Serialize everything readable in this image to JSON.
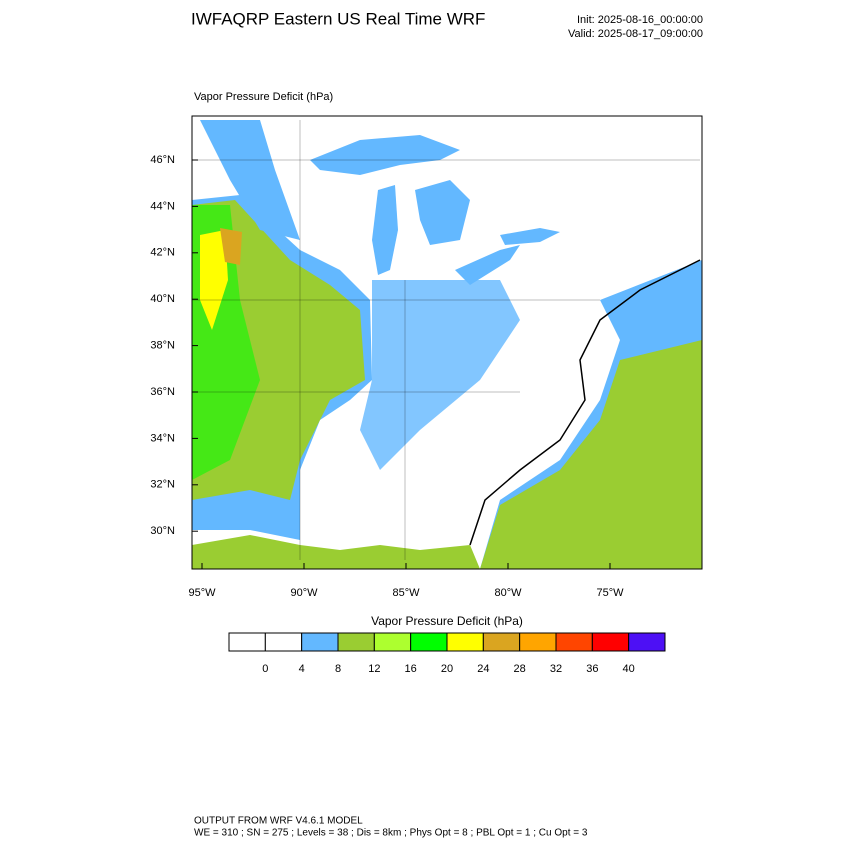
{
  "header": {
    "title": "IWFAQRP Eastern US Real Time WRF",
    "init": "Init: 2025-08-16_00:00:00",
    "valid": "Valid: 2025-08-17_09:00:00"
  },
  "plot": {
    "label": "Vapor Pressure Deficit   (hPa)",
    "lat_labels": [
      "46°N",
      "44°N",
      "42°N",
      "40°N",
      "38°N",
      "36°N",
      "34°N",
      "32°N",
      "30°N"
    ],
    "lon_labels": [
      "95°W",
      "90°W",
      "85°W",
      "80°W",
      "75°W"
    ]
  },
  "colorbar": {
    "title": "Vapor Pressure Deficit  (hPa)",
    "colors": [
      "#ffffff",
      "#ffffff",
      "#63b8ff",
      "#9acd32",
      "#adff2f",
      "#00ff00",
      "#ffff00",
      "#daa520",
      "#ffa500",
      "#ff4500",
      "#ff0000",
      "#4d10f5"
    ],
    "ticks": [
      0,
      4,
      8,
      12,
      16,
      20,
      24,
      28,
      32,
      36,
      40
    ]
  },
  "footer": {
    "line1": "OUTPUT FROM WRF V4.6.1 MODEL",
    "line2": "WE = 310 ; SN = 275 ; Levels = 38 ; Dis = 8km ; Phys Opt = 8 ; PBL Opt = 1 ; Cu Opt = 3"
  }
}
